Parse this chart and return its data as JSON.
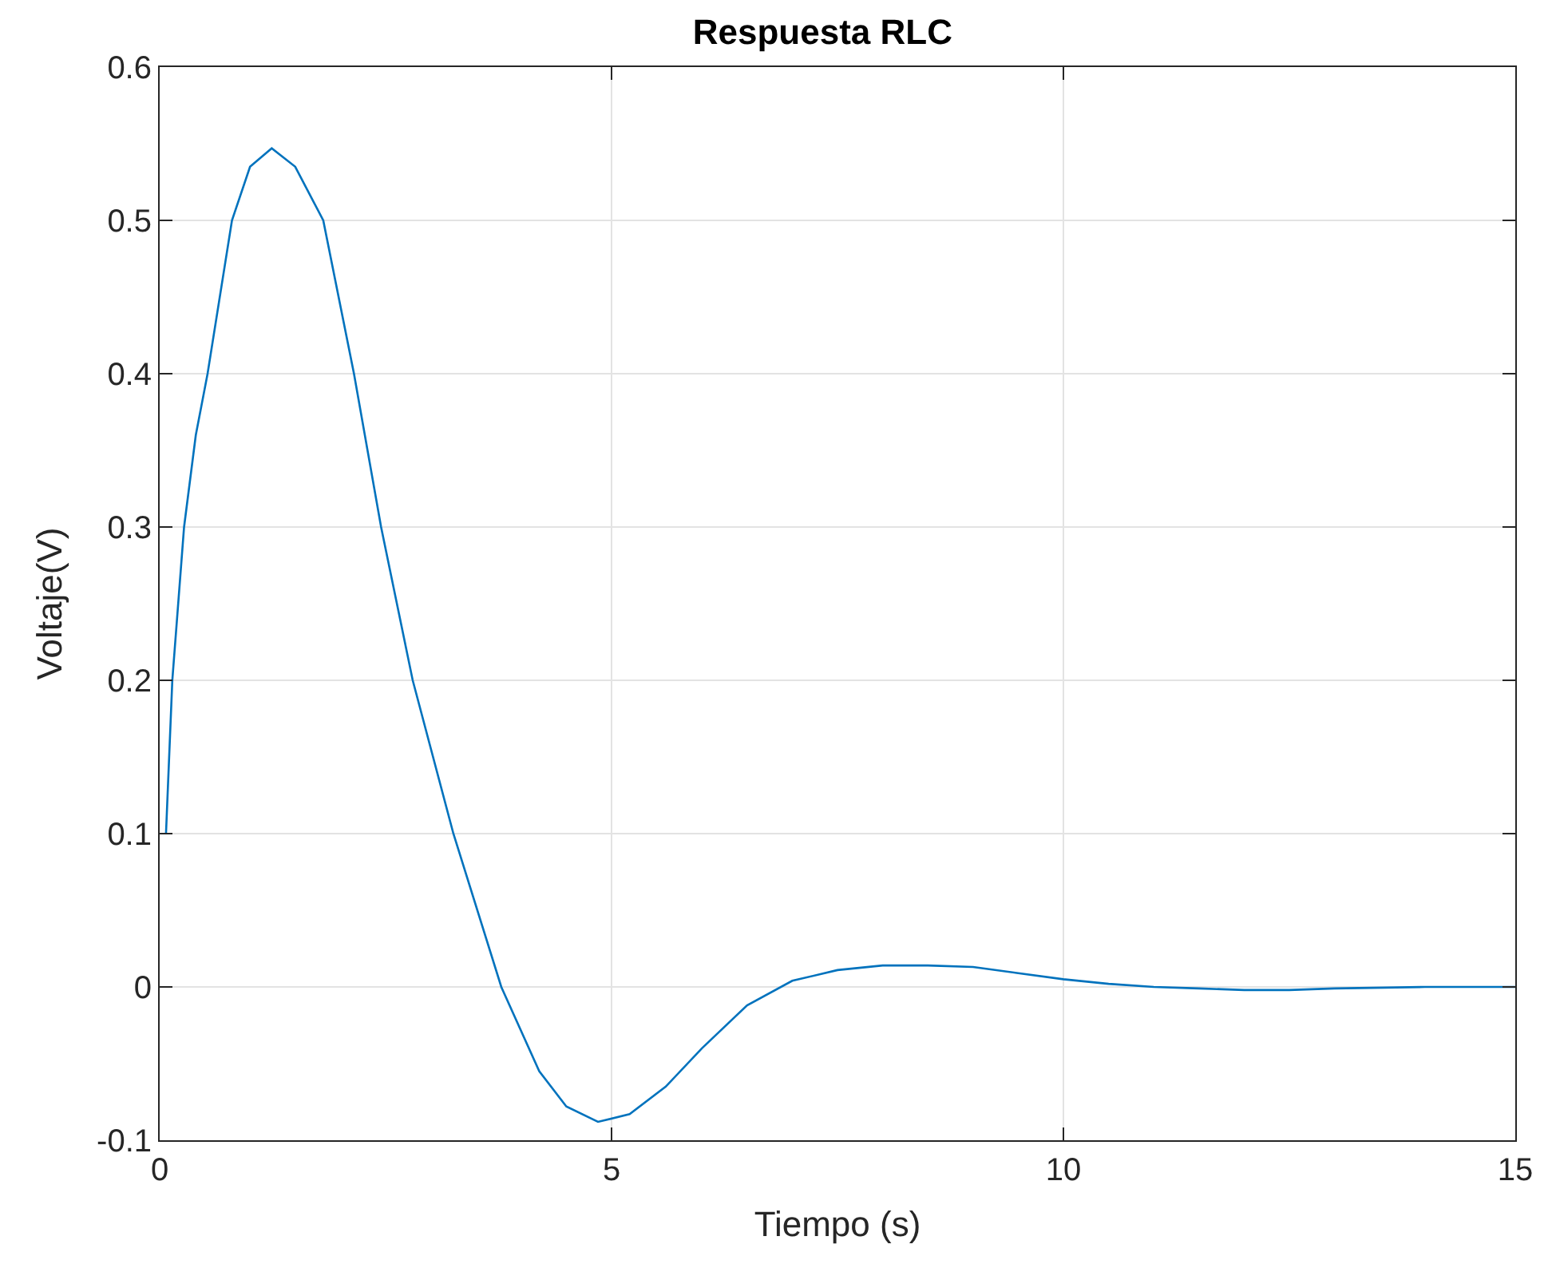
{
  "chart_data": {
    "type": "line",
    "title": "Respuesta RLC",
    "xlabel": "Tiempo (s)",
    "ylabel": "Voltaje(V)",
    "x": [
      0.07,
      0.14,
      0.27,
      0.4,
      0.53,
      0.8,
      1.0,
      1.24,
      1.5,
      1.81,
      2.15,
      2.45,
      2.8,
      3.25,
      3.78,
      4.2,
      4.5,
      4.85,
      5.2,
      5.6,
      6.0,
      6.5,
      7.0,
      7.5,
      8.0,
      8.5,
      9.0,
      9.5,
      10.0,
      10.5,
      11.0,
      11.5,
      12.0,
      12.5,
      13.0,
      14.0,
      15.0
    ],
    "series": [
      {
        "color": "#0072bd",
        "values": [
          0.1,
          0.2,
          0.3,
          0.36,
          0.4,
          0.5,
          0.535,
          0.547,
          0.535,
          0.5,
          0.4,
          0.3,
          0.2,
          0.1,
          0.0,
          -0.055,
          -0.078,
          -0.088,
          -0.083,
          -0.065,
          -0.04,
          -0.012,
          0.004,
          0.011,
          0.014,
          0.014,
          0.013,
          0.009,
          0.005,
          0.002,
          0.0,
          -0.001,
          -0.002,
          -0.002,
          -0.001,
          0.0,
          0.0
        ]
      }
    ],
    "xlim": [
      0,
      15
    ],
    "xticks": [
      0,
      5,
      10,
      15
    ],
    "ylim": [
      -0.1,
      0.6
    ],
    "yticks": [
      {
        "value": -0.1,
        "label": "-0.1"
      },
      0,
      0.1,
      0.2,
      0.3,
      0.4,
      0.5,
      0.6
    ],
    "grid": true,
    "line_style": "solid"
  }
}
